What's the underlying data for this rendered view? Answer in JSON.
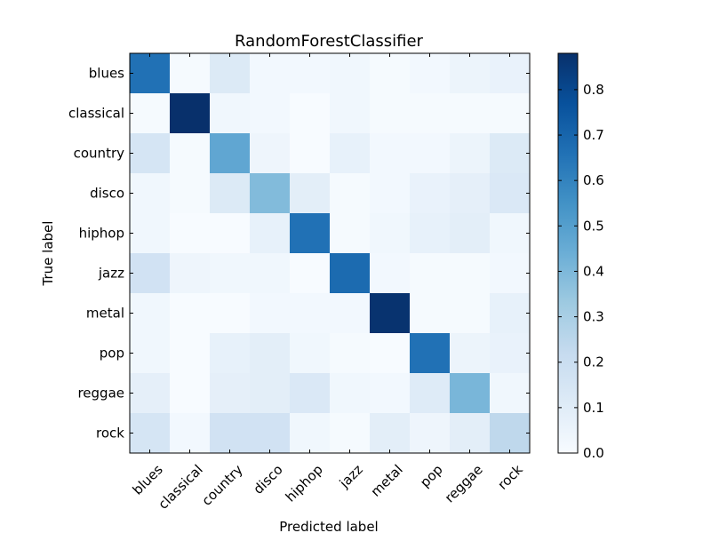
{
  "chart_data": {
    "type": "heatmap",
    "title": "RandomForestClassifier",
    "xlabel": "Predicted label",
    "ylabel": "True label",
    "x_categories": [
      "blues",
      "classical",
      "country",
      "disco",
      "hiphop",
      "jazz",
      "metal",
      "pop",
      "reggae",
      "rock"
    ],
    "y_categories": [
      "blues",
      "classical",
      "country",
      "disco",
      "hiphop",
      "jazz",
      "metal",
      "pop",
      "reggae",
      "rock"
    ],
    "values": [
      [
        0.66,
        0.01,
        0.12,
        0.02,
        0.02,
        0.03,
        0.01,
        0.02,
        0.05,
        0.06
      ],
      [
        0.01,
        0.88,
        0.03,
        0.02,
        0.0,
        0.03,
        0.01,
        0.01,
        0.01,
        0.01
      ],
      [
        0.15,
        0.01,
        0.47,
        0.04,
        0.0,
        0.07,
        0.02,
        0.02,
        0.05,
        0.12
      ],
      [
        0.03,
        0.01,
        0.12,
        0.39,
        0.09,
        0.01,
        0.02,
        0.06,
        0.08,
        0.13
      ],
      [
        0.03,
        0.0,
        0.0,
        0.07,
        0.66,
        0.01,
        0.03,
        0.07,
        0.09,
        0.03
      ],
      [
        0.17,
        0.04,
        0.03,
        0.03,
        0.0,
        0.68,
        0.02,
        0.01,
        0.01,
        0.02
      ],
      [
        0.03,
        0.0,
        0.0,
        0.02,
        0.02,
        0.02,
        0.87,
        0.01,
        0.01,
        0.07
      ],
      [
        0.03,
        0.0,
        0.07,
        0.09,
        0.03,
        0.01,
        0.0,
        0.66,
        0.05,
        0.06
      ],
      [
        0.08,
        0.0,
        0.08,
        0.09,
        0.13,
        0.03,
        0.02,
        0.11,
        0.41,
        0.03
      ],
      [
        0.15,
        0.02,
        0.17,
        0.17,
        0.03,
        0.01,
        0.09,
        0.04,
        0.09,
        0.24
      ]
    ],
    "colorbar": {
      "range": [
        0.0,
        0.88
      ],
      "ticks": [
        "0.0",
        "0.1",
        "0.2",
        "0.3",
        "0.4",
        "0.5",
        "0.6",
        "0.7",
        "0.8"
      ],
      "colormap": "Blues"
    },
    "grid": false
  },
  "colors": {
    "low": "#f7fbff",
    "high": "#08306b"
  }
}
